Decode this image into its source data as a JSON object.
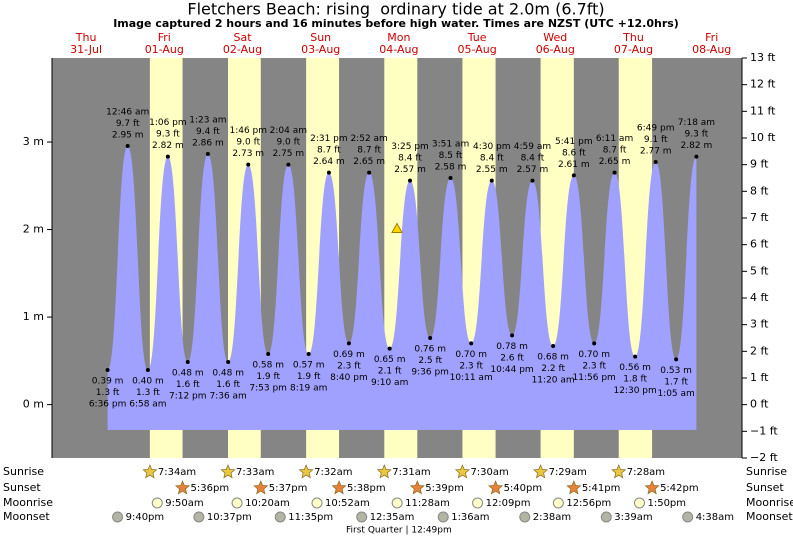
{
  "chart_data": {
    "type": "tide",
    "title": "Fletchers Beach: rising  ordinary tide at 2.0m (6.7ft)",
    "subtitle": "Image captured 2 hours and 16 minutes before high water. Times are NZST (UTC +12.0hrs)",
    "current": {
      "m": 2.0
    },
    "ylim": [
      -2,
      13
    ],
    "yticks": [
      {
        "value": -2,
        "label": "−2 ft"
      },
      {
        "value": -1,
        "label": "−1 ft"
      },
      {
        "value": 0,
        "label": "0 ft"
      },
      {
        "value": 1,
        "label": "1 ft"
      },
      {
        "value": 2,
        "label": "2 ft"
      },
      {
        "value": 3,
        "label": "3 ft"
      },
      {
        "value": 4,
        "label": "4 ft"
      },
      {
        "value": 5,
        "label": "5 ft"
      },
      {
        "value": 6,
        "label": "6 ft"
      },
      {
        "value": 7,
        "label": "7 ft"
      },
      {
        "value": 8,
        "label": "8 ft"
      },
      {
        "value": 9,
        "label": "9 ft"
      },
      {
        "value": 10,
        "label": "10 ft"
      },
      {
        "value": 11,
        "label": "11 ft"
      },
      {
        "value": 12,
        "label": "12 ft"
      },
      {
        "value": 13,
        "label": "13 ft"
      }
    ],
    "y2lim": [
      -0.61,
      3.96
    ],
    "y2ticks": [
      {
        "value": 0,
        "label": "0 m"
      },
      {
        "value": 1,
        "label": "1 m"
      },
      {
        "value": 2,
        "label": "2 m"
      },
      {
        "value": 3,
        "label": "3 m"
      }
    ],
    "row_labels": [
      "Sunrise",
      "Sunset",
      "Moonrise",
      "Moonset"
    ],
    "colors": {
      "night": "#858585",
      "day": "#ffffc4",
      "water": "#a0a0ff",
      "day_label": "#cc0000"
    },
    "days": [
      {
        "name": "Thu",
        "date": "31-Jul",
        "moonset": "9:40pm",
        "tides": [
          {
            "time": "6:36 pm",
            "ft": 1.3,
            "ft_label": "1.3 ft",
            "m": 0.39,
            "m_label": "0.39 m"
          }
        ]
      },
      {
        "name": "Fri",
        "date": "01-Aug",
        "sunrise": "7:34am",
        "sunset": "5:36pm",
        "moonrise": "9:50am",
        "moonset": "10:37pm",
        "tides": [
          {
            "time": "12:46 am",
            "ft": 9.7,
            "ft_label": "9.7 ft",
            "m": 2.95,
            "m_label": "2.95 m"
          },
          {
            "time": "6:58 am",
            "ft": 1.3,
            "ft_label": "1.3 ft",
            "m": 0.4,
            "m_label": "0.40 m"
          },
          {
            "time": "1:06 pm",
            "ft": 9.3,
            "ft_label": "9.3 ft",
            "m": 2.82,
            "m_label": "2.82 m"
          },
          {
            "time": "7:12 pm",
            "ft": 1.6,
            "ft_label": "1.6 ft",
            "m": 0.48,
            "m_label": "0.48 m"
          }
        ]
      },
      {
        "name": "Sat",
        "date": "02-Aug",
        "sunrise": "7:33am",
        "sunset": "5:37pm",
        "moonrise": "10:20am",
        "moonset": "11:35pm",
        "tides": [
          {
            "time": "1:23 am",
            "ft": 9.4,
            "ft_label": "9.4 ft",
            "m": 2.86,
            "m_label": "2.86 m"
          },
          {
            "time": "7:36 am",
            "ft": 1.6,
            "ft_label": "1.6 ft",
            "m": 0.48,
            "m_label": "0.48 m"
          },
          {
            "time": "1:46 pm",
            "ft": 9.0,
            "ft_label": "9.0 ft",
            "m": 2.73,
            "m_label": "2.73 m"
          },
          {
            "time": "7:53 pm",
            "ft": 1.9,
            "ft_label": "1.9 ft",
            "m": 0.58,
            "m_label": "0.58 m"
          }
        ]
      },
      {
        "name": "Sun",
        "date": "03-Aug",
        "sunrise": "7:32am",
        "sunset": "5:38pm",
        "moonrise": "10:52am",
        "tides": [
          {
            "time": "2:04 am",
            "ft": 9.0,
            "ft_label": "9.0 ft",
            "m": 2.75,
            "m_label": "2.75 m"
          },
          {
            "time": "8:19 am",
            "ft": 1.9,
            "ft_label": "1.9 ft",
            "m": 0.57,
            "m_label": "0.57 m"
          },
          {
            "time": "2:31 pm",
            "ft": 8.7,
            "ft_label": "8.7 ft",
            "m": 2.64,
            "m_label": "2.64 m"
          },
          {
            "time": "8:40 pm",
            "ft": 2.3,
            "ft_label": "2.3 ft",
            "m": 0.69,
            "m_label": "0.69 m"
          }
        ]
      },
      {
        "name": "Mon",
        "date": "04-Aug",
        "sunrise": "7:31am",
        "sunset": "5:39pm",
        "moonrise": "11:28am",
        "moonset": "12:35am",
        "moon_phase": "First Quarter | 12:49pm",
        "tides": [
          {
            "time": "2:52 am",
            "ft": 8.7,
            "ft_label": "8.7 ft",
            "m": 2.65,
            "m_label": "2.65 m"
          },
          {
            "time": "9:10 am",
            "ft": 2.1,
            "ft_label": "2.1 ft",
            "m": 0.65,
            "m_label": "0.65 m"
          },
          {
            "time": "3:25 pm",
            "ft": 8.4,
            "ft_label": "8.4 ft",
            "m": 2.57,
            "m_label": "2.57 m"
          },
          {
            "time": "9:36 pm",
            "ft": 2.5,
            "ft_label": "2.5 ft",
            "m": 0.76,
            "m_label": "0.76 m"
          }
        ]
      },
      {
        "name": "Tue",
        "date": "05-Aug",
        "sunrise": "7:30am",
        "sunset": "5:40pm",
        "moonrise": "12:09pm",
        "moonset": "1:36am",
        "tides": [
          {
            "time": "3:51 am",
            "ft": 8.5,
            "ft_label": "8.5 ft",
            "m": 2.58,
            "m_label": "2.58 m"
          },
          {
            "time": "10:11 am",
            "ft": 2.3,
            "ft_label": "2.3 ft",
            "m": 0.7,
            "m_label": "0.70 m"
          },
          {
            "time": "4:30 pm",
            "ft": 8.4,
            "ft_label": "8.4 ft",
            "m": 2.55,
            "m_label": "2.55 m"
          },
          {
            "time": "10:44 pm",
            "ft": 2.6,
            "ft_label": "2.6 ft",
            "m": 0.78,
            "m_label": "0.78 m"
          }
        ]
      },
      {
        "name": "Wed",
        "date": "06-Aug",
        "sunrise": "7:29am",
        "sunset": "5:41pm",
        "moonrise": "12:56pm",
        "moonset": "2:38am",
        "tides": [
          {
            "time": "4:59 am",
            "ft": 8.4,
            "ft_label": "8.4 ft",
            "m": 2.57,
            "m_label": "2.57 m"
          },
          {
            "time": "11:20 am",
            "ft": 2.2,
            "ft_label": "2.2 ft",
            "m": 0.68,
            "m_label": "0.68 m"
          },
          {
            "time": "5:41 pm",
            "ft": 8.6,
            "ft_label": "8.6 ft",
            "m": 2.61,
            "m_label": "2.61 m"
          },
          {
            "time": "11:56 pm",
            "ft": 2.3,
            "ft_label": "2.3 ft",
            "m": 0.7,
            "m_label": "0.70 m"
          }
        ]
      },
      {
        "name": "Thu",
        "date": "07-Aug",
        "sunrise": "7:28am",
        "sunset": "5:42pm",
        "moonrise": "1:50pm",
        "moonset": "3:39am",
        "tides": [
          {
            "time": "6:11 am",
            "ft": 8.7,
            "ft_label": "8.7 ft",
            "m": 2.65,
            "m_label": "2.65 m"
          },
          {
            "time": "12:30 pm",
            "ft": 1.8,
            "ft_label": "1.8 ft",
            "m": 0.56,
            "m_label": "0.56 m"
          },
          {
            "time": "6:49 pm",
            "ft": 9.1,
            "ft_label": "9.1 ft",
            "m": 2.77,
            "m_label": "2.77 m"
          }
        ]
      },
      {
        "name": "Fri",
        "date": "08-Aug",
        "moonset": "4:38am",
        "tides": [
          {
            "time": "1:05 am",
            "ft": 1.7,
            "ft_label": "1.7 ft",
            "m": 0.53,
            "m_label": "0.53 m"
          },
          {
            "time": "7:18 am",
            "ft": 9.3,
            "ft_label": "9.3 ft",
            "m": 2.82,
            "m_label": "2.82 m"
          }
        ]
      }
    ]
  }
}
